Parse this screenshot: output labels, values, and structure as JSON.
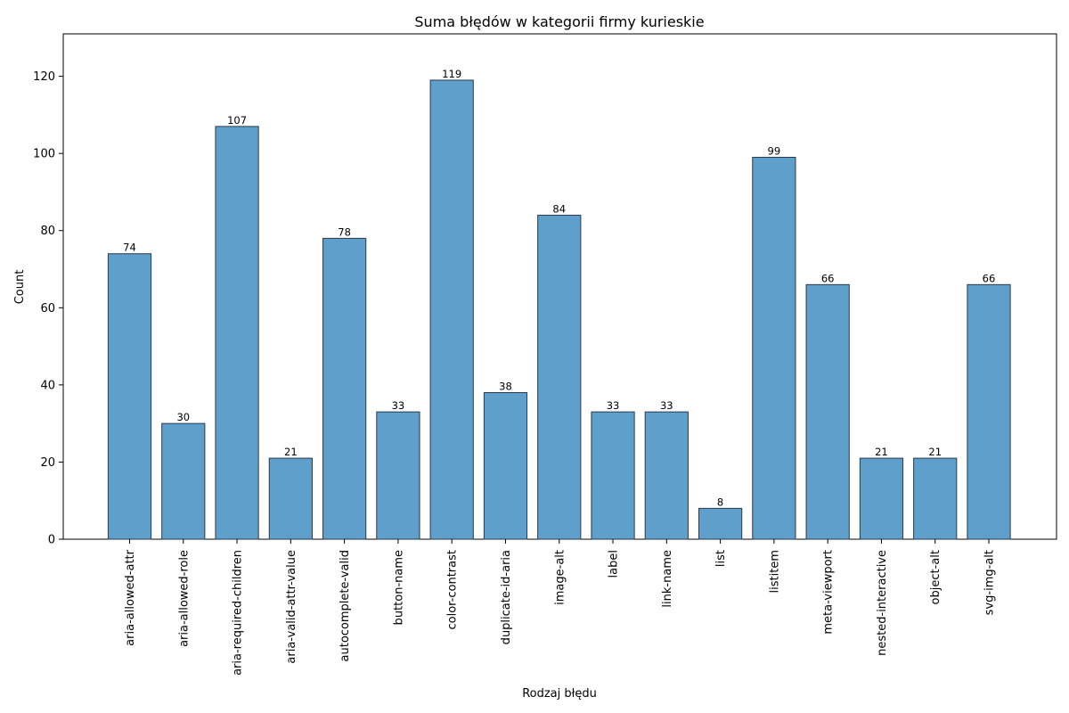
{
  "chart_data": {
    "type": "bar",
    "title": "Suma błędów w kategorii firmy kurieskie",
    "xlabel": "Rodzaj błędu",
    "ylabel": "Count",
    "categories": [
      "aria-allowed-attr",
      "aria-allowed-role",
      "aria-required-children",
      "aria-valid-attr-value",
      "autocomplete-valid",
      "button-name",
      "color-contrast",
      "duplicate-id-aria",
      "image-alt",
      "label",
      "link-name",
      "list",
      "listitem",
      "meta-viewport",
      "nested-interactive",
      "object-alt",
      "svg-img-alt"
    ],
    "values": [
      74,
      30,
      107,
      21,
      78,
      33,
      119,
      38,
      84,
      33,
      33,
      8,
      99,
      66,
      21,
      21,
      66
    ],
    "ylim": [
      0,
      131
    ],
    "yticks": [
      0,
      20,
      40,
      60,
      80,
      100,
      120
    ],
    "bar_color": "#5f9fcb",
    "bar_edge_color": "#2a3a4a",
    "grid": false,
    "data_labels": true
  }
}
